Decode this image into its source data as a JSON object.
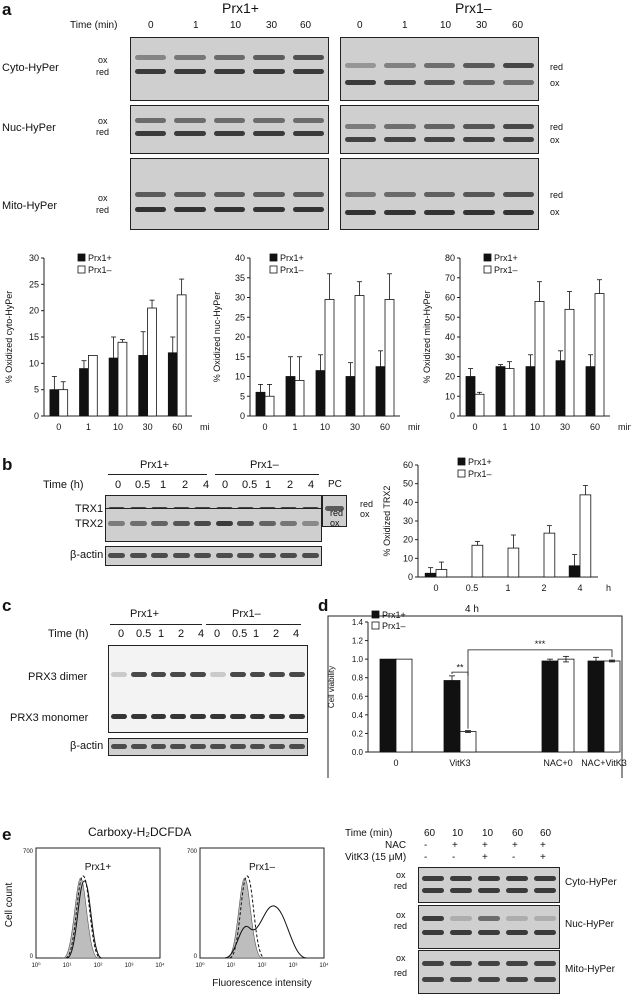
{
  "panel_a": {
    "label": "a",
    "time_label": "Time (min)",
    "groups": [
      "Prx1+",
      "Prx1–"
    ],
    "times": [
      "0",
      "1",
      "10",
      "30",
      "60"
    ],
    "rows": [
      {
        "name": "Cyto-HyPer",
        "left_top": "ox",
        "left_bottom": "red",
        "right_top": "red",
        "right_bottom": "ox"
      },
      {
        "name": "Nuc-HyPer",
        "left_top": "ox",
        "left_bottom": "red",
        "right_top": "red",
        "right_bottom": "ox"
      },
      {
        "name": "Mito-HyPer",
        "left_top": "ox",
        "left_bottom": "red",
        "right_top": "red",
        "right_bottom": "ox"
      }
    ]
  },
  "panel_b": {
    "label": "b",
    "time_label": "Time (h)",
    "groups": [
      "Prx1+",
      "Prx1–"
    ],
    "times": [
      "0",
      "0.5",
      "1",
      "2",
      "4"
    ],
    "pc_label": "PC",
    "rows": [
      "TRX1",
      "TRX2",
      "β-actin"
    ],
    "trx1_marks": [
      "red",
      "ox"
    ],
    "trx2_marks": [
      "red",
      "ox"
    ]
  },
  "panel_c": {
    "label": "c",
    "time_label": "Time (h)",
    "groups": [
      "Prx1+",
      "Prx1–"
    ],
    "times": [
      "0",
      "0.5",
      "1",
      "2",
      "4"
    ],
    "rows": [
      "PRX3 dimer",
      "PRX3 monomer",
      "β-actin"
    ]
  },
  "panel_d": {
    "label": "d"
  },
  "panel_e": {
    "label": "e",
    "flow_title": "Carboxy-H₂DCFDA",
    "ylabel": "Cell count",
    "xlabel": "Fluorescence intensity",
    "hist_titles": [
      "Prx1+",
      "Prx1–"
    ],
    "y_tick_top": "700",
    "y_tick_zero": "0",
    "x_ticks": [
      "10⁰",
      "10¹",
      "10²",
      "10³",
      "10⁴"
    ],
    "table_rows": [
      {
        "label": "Time (min)",
        "values": [
          "60",
          "10",
          "10",
          "60",
          "60"
        ]
      },
      {
        "label": "NAC",
        "values": [
          "-",
          "+",
          "+",
          "+",
          "+"
        ]
      },
      {
        "label": "VitK3 (15 μM)",
        "values": [
          "-",
          "-",
          "+",
          "-",
          "+"
        ]
      }
    ],
    "blots": [
      {
        "name": "Cyto-HyPer",
        "top": "ox",
        "bottom": "red"
      },
      {
        "name": "Nuc-HyPer",
        "top": "ox",
        "bottom": "red"
      },
      {
        "name": "Mito-HyPer",
        "top": "ox",
        "bottom": "red"
      }
    ]
  },
  "chart_data": [
    {
      "type": "bar",
      "ylabel": "% Oxidized cyto-HyPer",
      "xlabel": "min",
      "categories": [
        "0",
        "1",
        "10",
        "30",
        "60"
      ],
      "ylim": [
        0,
        30
      ],
      "yticks": [
        "0",
        "5",
        "10",
        "15",
        "20",
        "25",
        "30"
      ],
      "series": [
        {
          "name": "Prx1+",
          "values": [
            5,
            9,
            11,
            11.5,
            12
          ],
          "errors": [
            2.5,
            1.5,
            4,
            4.5,
            3
          ],
          "color": "#111111"
        },
        {
          "name": "Prx1–",
          "values": [
            5,
            11.5,
            14,
            20.5,
            23
          ],
          "errors": [
            1.5,
            0,
            0.5,
            1.5,
            3
          ],
          "color": "#ffffff"
        }
      ]
    },
    {
      "type": "bar",
      "ylabel": "% Oxidized nuc-HyPer",
      "xlabel": "min",
      "categories": [
        "0",
        "1",
        "10",
        "30",
        "60"
      ],
      "ylim": [
        0,
        40
      ],
      "yticks": [
        "0",
        "5",
        "10",
        "15",
        "20",
        "25",
        "30",
        "35",
        "40"
      ],
      "series": [
        {
          "name": "Prx1+",
          "values": [
            6,
            10,
            11.5,
            10,
            12.5
          ],
          "errors": [
            2,
            5,
            4,
            3.5,
            4
          ],
          "color": "#111111"
        },
        {
          "name": "Prx1–",
          "values": [
            5,
            9,
            29.5,
            30.5,
            29.5
          ],
          "errors": [
            3,
            6,
            6.5,
            3.5,
            6.5
          ],
          "color": "#ffffff"
        }
      ]
    },
    {
      "type": "bar",
      "ylabel": "% Oxidized mito-HyPer",
      "xlabel": "min",
      "categories": [
        "0",
        "1",
        "10",
        "30",
        "60"
      ],
      "ylim": [
        0,
        80
      ],
      "yticks": [
        "0",
        "10",
        "20",
        "30",
        "40",
        "50",
        "60",
        "70",
        "80"
      ],
      "series": [
        {
          "name": "Prx1+",
          "values": [
            20,
            25,
            25,
            28,
            25
          ],
          "errors": [
            4,
            1,
            6,
            5,
            6
          ],
          "color": "#111111"
        },
        {
          "name": "Prx1–",
          "values": [
            11,
            24,
            58,
            54,
            62
          ],
          "errors": [
            1,
            3.5,
            10,
            9,
            7
          ],
          "color": "#ffffff"
        }
      ]
    },
    {
      "type": "bar",
      "ylabel": "% Oxidized TRX2",
      "xlabel": "h",
      "categories": [
        "0",
        "0.5",
        "1",
        "2",
        "4"
      ],
      "ylim": [
        0,
        60
      ],
      "yticks": [
        "0",
        "10",
        "20",
        "30",
        "40",
        "50",
        "60"
      ],
      "series": [
        {
          "name": "Prx1+",
          "values": [
            2,
            0,
            0,
            0,
            6
          ],
          "errors": [
            3,
            0,
            0,
            0,
            6
          ],
          "color": "#111111"
        },
        {
          "name": "Prx1–",
          "values": [
            4,
            17,
            15.5,
            23.5,
            44
          ],
          "errors": [
            4,
            2,
            7,
            4,
            5
          ],
          "color": "#ffffff"
        }
      ]
    },
    {
      "type": "bar",
      "title": "4 h",
      "ylabel": "Cell viability",
      "categories": [
        "0",
        "VitK3",
        "NAC+0",
        "NAC+VitK3"
      ],
      "ylim": [
        0,
        1.4
      ],
      "yticks": [
        "0.0",
        "0.2",
        "0.4",
        "0.6",
        "0.8",
        "1.0",
        "1.2",
        "1.4"
      ],
      "annotations": [
        "**",
        "***"
      ],
      "series": [
        {
          "name": "Prx1+",
          "values": [
            1.0,
            0.77,
            0.98,
            0.98
          ],
          "errors": [
            0,
            0.05,
            0.02,
            0.04
          ],
          "color": "#111111"
        },
        {
          "name": "Prx1–",
          "values": [
            1.0,
            0.22,
            1.0,
            0.98
          ],
          "errors": [
            0,
            0.01,
            0.03,
            0.01
          ],
          "color": "#ffffff"
        }
      ]
    }
  ]
}
